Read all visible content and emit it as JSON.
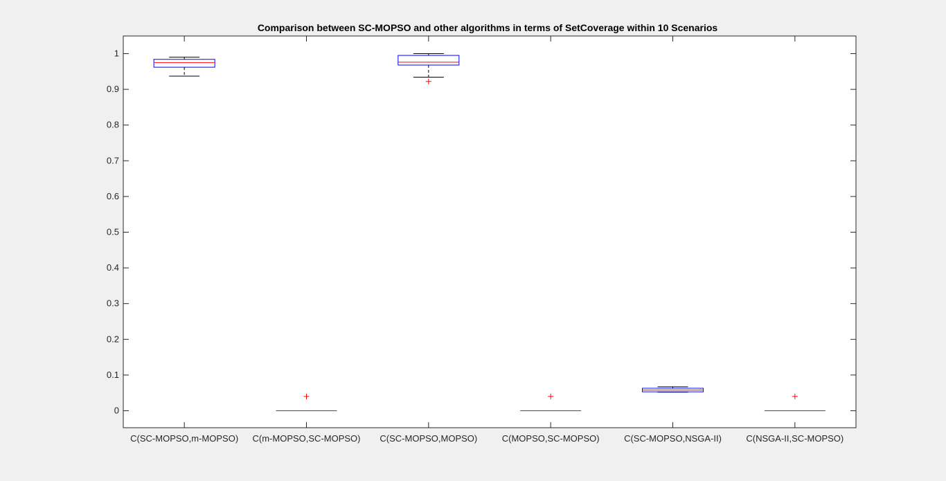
{
  "chart_data": {
    "type": "box",
    "title": "Comparison between SC-MOPSO and other algorithms in terms of SetCoverage within 10 Scenarios",
    "xlabel": "",
    "ylabel": "",
    "ylim": [
      -0.05,
      1.05
    ],
    "yticks": [
      0,
      0.1,
      0.2,
      0.3,
      0.4,
      0.5,
      0.6,
      0.7,
      0.8,
      0.9,
      1
    ],
    "ytick_labels": [
      "0",
      "0.1",
      "0.2",
      "0.3",
      "0.4",
      "0.5",
      "0.6",
      "0.7",
      "0.8",
      "0.9",
      "1"
    ],
    "grid": false,
    "categories": [
      "C(SC-MOPSO,m-MOPSO)",
      "C(m-MOPSO,SC-MOPSO)",
      "C(SC-MOPSO,MOPSO)",
      "C(MOPSO,SC-MOPSO)",
      "C(SC-MOPSO,NSGA-II)",
      "C(NSGA-II,SC-MOPSO)"
    ],
    "boxes": [
      {
        "min": 0.937,
        "q1": 0.962,
        "median": 0.975,
        "q3": 0.984,
        "max": 0.99,
        "outliers": []
      },
      {
        "min": 0,
        "q1": 0,
        "median": 0,
        "q3": 0,
        "max": 0,
        "outliers": [
          0.04
        ]
      },
      {
        "min": 0.934,
        "q1": 0.968,
        "median": 0.976,
        "q3": 0.995,
        "max": 1.0,
        "outliers": [
          0.922
        ]
      },
      {
        "min": 0,
        "q1": 0,
        "median": 0,
        "q3": 0,
        "max": 0,
        "outliers": [
          0.04
        ]
      },
      {
        "min": 0.052,
        "q1": 0.053,
        "median": 0.058,
        "q3": 0.063,
        "max": 0.067,
        "outliers": []
      },
      {
        "min": 0,
        "q1": 0,
        "median": 0,
        "q3": 0,
        "max": 0,
        "outliers": [
          0.04
        ]
      }
    ],
    "colors": {
      "box": "#0000ff",
      "median": "#ff0000",
      "whisker": "#000000",
      "outlier": "#ff0000",
      "axes": "#262626",
      "axes_background": "#ffffff",
      "figure_background": "#f0f0f0"
    }
  }
}
